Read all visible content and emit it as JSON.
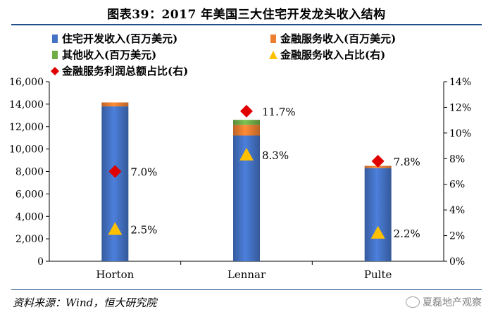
{
  "title": "图表39：2017 年美国三大住宅开发龙头收入结构",
  "source": "资料来源：Wind，恒大研究院",
  "watermark": "夏磊地产观察",
  "colors": {
    "housing": "#4472c4",
    "financial": "#ed7d31",
    "other": "#70ad47",
    "ratio_triangle": "#ffc000",
    "profit_diamond": "#e00000",
    "title_rule": "#1f4e8c"
  },
  "chart_data": {
    "type": "bar",
    "stacked": true,
    "categories": [
      "Horton",
      "Lennar",
      "Pulte"
    ],
    "series": [
      {
        "name": "住宅开发收入(百万美元)",
        "axis": "left",
        "values": [
          13800,
          11200,
          8300
        ],
        "color": "#4472c4"
      },
      {
        "name": "金融服务收入(百万美元)",
        "axis": "left",
        "values": [
          350,
          950,
          200
        ],
        "color": "#ed7d31"
      },
      {
        "name": "其他收入(百万美元)",
        "axis": "left",
        "values": [
          0,
          450,
          0
        ],
        "color": "#70ad47"
      }
    ],
    "overlay_series": [
      {
        "name": "金融服务收入占比(右)",
        "marker": "triangle",
        "axis": "right",
        "values": [
          2.5,
          8.3,
          2.2
        ],
        "labels": [
          "2.5%",
          "8.3%",
          "2.2%"
        ],
        "color": "#ffc000"
      },
      {
        "name": "金融服务利润总额占比(右)",
        "marker": "diamond",
        "axis": "right",
        "values": [
          7.0,
          11.7,
          7.8
        ],
        "labels": [
          "7.0%",
          "11.7%",
          "7.8%"
        ],
        "color": "#e00000"
      }
    ],
    "y_left": {
      "min": 0,
      "max": 16000,
      "ticks": [
        "0",
        "2,000",
        "4,000",
        "6,000",
        "8,000",
        "10,000",
        "12,000",
        "14,000",
        "16,000"
      ]
    },
    "y_right": {
      "min": 0,
      "max": 14,
      "ticks": [
        "0%",
        "2%",
        "4%",
        "6%",
        "8%",
        "10%",
        "12%",
        "14%"
      ]
    },
    "legend_position": "top"
  }
}
